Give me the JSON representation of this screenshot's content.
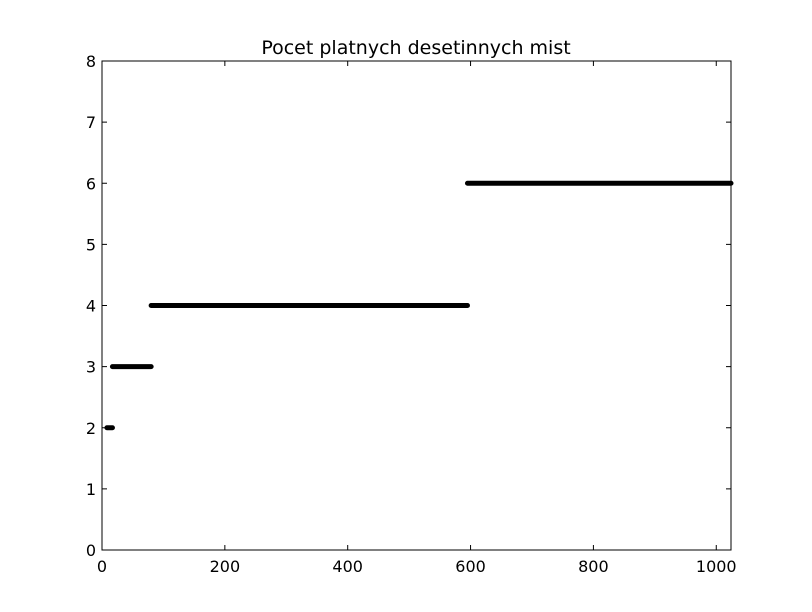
{
  "chart_data": {
    "type": "scatter",
    "title": "Pocet platnych desetinnych mist",
    "xlabel": "",
    "ylabel": "",
    "xlim": [
      0,
      1024
    ],
    "ylim": [
      0,
      8
    ],
    "xticks": [
      "0",
      "200",
      "400",
      "600",
      "800",
      "1000"
    ],
    "yticks": [
      "0",
      "1",
      "2",
      "3",
      "4",
      "5",
      "6",
      "7",
      "8"
    ],
    "grid": false,
    "legend": "none",
    "marker_color": "#000000",
    "series": [
      {
        "segments": [
          {
            "x_start": 8,
            "x_end": 17,
            "y": 2
          },
          {
            "x_start": 17,
            "x_end": 80,
            "y": 3
          },
          {
            "x_start": 80,
            "x_end": 595,
            "y": 4
          },
          {
            "x_start": 595,
            "x_end": 1024,
            "y": 6
          }
        ]
      }
    ]
  }
}
